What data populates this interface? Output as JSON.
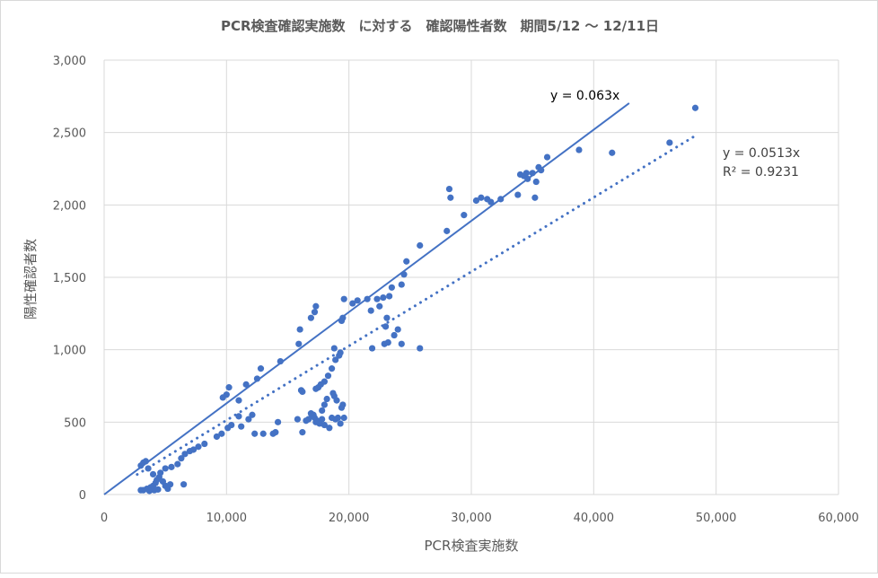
{
  "chart_data": {
    "type": "scatter",
    "title": "PCR検査確認実施数　に対する　確認陽性者数　期間5/12 ～ 12/11日",
    "xlabel": "PCR検査実施数",
    "ylabel": "陽性確認者数",
    "xlim": [
      0,
      60000
    ],
    "ylim": [
      0,
      3000
    ],
    "xticks": [
      0,
      10000,
      20000,
      30000,
      40000,
      50000,
      60000
    ],
    "yticks": [
      0,
      500,
      1000,
      1500,
      2000,
      2500,
      3000
    ],
    "xtick_labels": [
      "0",
      "10,000",
      "20,000",
      "30,000",
      "40,000",
      "50,000",
      "60,000"
    ],
    "ytick_labels": [
      "0",
      "500",
      "1,000",
      "1,500",
      "2,000",
      "2,500",
      "3,000"
    ],
    "grid": true,
    "color": "#4472C4",
    "points": [
      [
        3000,
        30
      ],
      [
        3200,
        30
      ],
      [
        3500,
        40
      ],
      [
        3800,
        50
      ],
      [
        4000,
        60
      ],
      [
        4200,
        80
      ],
      [
        4300,
        100
      ],
      [
        4500,
        120
      ],
      [
        4600,
        150
      ],
      [
        4800,
        90
      ],
      [
        5000,
        60
      ],
      [
        5200,
        40
      ],
      [
        4100,
        30
      ],
      [
        3700,
        25
      ],
      [
        4400,
        35
      ],
      [
        5400,
        70
      ],
      [
        6500,
        70
      ],
      [
        4000,
        140
      ],
      [
        3600,
        180
      ],
      [
        3000,
        200
      ],
      [
        3200,
        220
      ],
      [
        3400,
        230
      ],
      [
        5000,
        180
      ],
      [
        5500,
        190
      ],
      [
        6000,
        210
      ],
      [
        6300,
        250
      ],
      [
        6600,
        280
      ],
      [
        7000,
        300
      ],
      [
        7300,
        310
      ],
      [
        7700,
        330
      ],
      [
        8200,
        350
      ],
      [
        9200,
        400
      ],
      [
        9600,
        420
      ],
      [
        10100,
        460
      ],
      [
        10400,
        480
      ],
      [
        11200,
        470
      ],
      [
        11800,
        520
      ],
      [
        12100,
        550
      ],
      [
        12300,
        420
      ],
      [
        13000,
        420
      ],
      [
        13800,
        420
      ],
      [
        14000,
        430
      ],
      [
        14200,
        500
      ],
      [
        11000,
        540
      ],
      [
        9700,
        670
      ],
      [
        10000,
        690
      ],
      [
        10200,
        740
      ],
      [
        11000,
        650
      ],
      [
        11600,
        760
      ],
      [
        12500,
        800
      ],
      [
        12800,
        870
      ],
      [
        14400,
        920
      ],
      [
        15800,
        520
      ],
      [
        16200,
        430
      ],
      [
        16500,
        510
      ],
      [
        16700,
        520
      ],
      [
        17000,
        540
      ],
      [
        17200,
        530
      ],
      [
        17400,
        510
      ],
      [
        17600,
        490
      ],
      [
        17800,
        520
      ],
      [
        18000,
        480
      ],
      [
        18400,
        460
      ],
      [
        16900,
        560
      ],
      [
        17100,
        550
      ],
      [
        17300,
        500
      ],
      [
        18600,
        530
      ],
      [
        18900,
        520
      ],
      [
        19100,
        530
      ],
      [
        19300,
        490
      ],
      [
        19600,
        530
      ],
      [
        19400,
        600
      ],
      [
        19500,
        620
      ],
      [
        18800,
        680
      ],
      [
        19000,
        650
      ],
      [
        18700,
        700
      ],
      [
        18200,
        660
      ],
      [
        18000,
        620
      ],
      [
        17800,
        580
      ],
      [
        17500,
        740
      ],
      [
        17300,
        730
      ],
      [
        17700,
        760
      ],
      [
        18000,
        780
      ],
      [
        18300,
        820
      ],
      [
        18600,
        870
      ],
      [
        18900,
        930
      ],
      [
        19200,
        960
      ],
      [
        18800,
        1010
      ],
      [
        19300,
        980
      ],
      [
        15900,
        1040
      ],
      [
        16000,
        1140
      ],
      [
        16200,
        710
      ],
      [
        16100,
        720
      ],
      [
        16900,
        1220
      ],
      [
        17200,
        1260
      ],
      [
        17300,
        1300
      ],
      [
        19400,
        1200
      ],
      [
        19500,
        1220
      ],
      [
        19600,
        1350
      ],
      [
        20300,
        1320
      ],
      [
        20700,
        1340
      ],
      [
        21500,
        1350
      ],
      [
        21800,
        1270
      ],
      [
        22300,
        1350
      ],
      [
        22500,
        1300
      ],
      [
        22800,
        1360
      ],
      [
        23100,
        1220
      ],
      [
        23300,
        1370
      ],
      [
        23500,
        1430
      ],
      [
        23000,
        1160
      ],
      [
        23200,
        1050
      ],
      [
        23700,
        1100
      ],
      [
        24000,
        1140
      ],
      [
        24300,
        1040
      ],
      [
        22900,
        1040
      ],
      [
        21900,
        1010
      ],
      [
        24300,
        1450
      ],
      [
        24500,
        1520
      ],
      [
        25800,
        1010
      ],
      [
        24700,
        1610
      ],
      [
        25800,
        1720
      ],
      [
        28000,
        1820
      ],
      [
        28200,
        2110
      ],
      [
        28300,
        2050
      ],
      [
        29400,
        1930
      ],
      [
        30400,
        2030
      ],
      [
        30800,
        2050
      ],
      [
        31300,
        2040
      ],
      [
        31600,
        2020
      ],
      [
        32400,
        2040
      ],
      [
        33800,
        2070
      ],
      [
        34000,
        2210
      ],
      [
        34300,
        2200
      ],
      [
        34600,
        2180
      ],
      [
        35000,
        2220
      ],
      [
        35300,
        2160
      ],
      [
        35200,
        2050
      ],
      [
        35500,
        2260
      ],
      [
        36200,
        2330
      ],
      [
        38800,
        2380
      ],
      [
        41500,
        2360
      ],
      [
        46200,
        2430
      ],
      [
        48300,
        2670
      ],
      [
        35700,
        2240
      ],
      [
        34500,
        2220
      ]
    ],
    "trendlines": [
      {
        "name": "manual",
        "slope": 0.063,
        "x_range": [
          0,
          42900
        ],
        "style": "solid",
        "label": "y = 0.063x"
      },
      {
        "name": "linear-fit",
        "slope": 0.0513,
        "x_range": [
          2700,
          48300
        ],
        "style": "dotted",
        "label": "y = 0.0513x",
        "r2_label": "R² = 0.9231"
      }
    ]
  }
}
